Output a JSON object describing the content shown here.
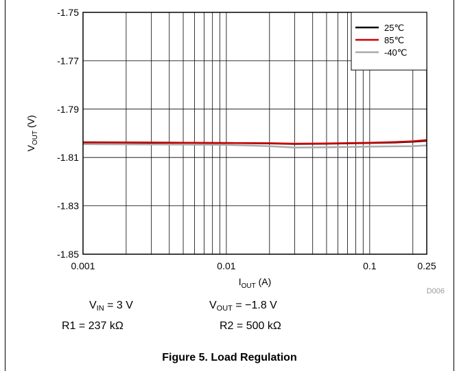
{
  "chart_data": {
    "type": "line",
    "xscale": "log",
    "xlim": [
      0.001,
      0.25
    ],
    "ylim": [
      -1.85,
      -1.75
    ],
    "x_tick_values": [
      0.001,
      0.01,
      0.1,
      0.25
    ],
    "x_tick_labels": [
      "0.001",
      "0.01",
      "0.1",
      "0.25"
    ],
    "y_tick_values": [
      -1.75,
      -1.77,
      -1.79,
      -1.81,
      -1.83,
      -1.85
    ],
    "y_tick_labels": [
      "-1.75",
      "-1.77",
      "-1.79",
      "-1.81",
      "-1.83",
      "-1.85"
    ],
    "xlabel": {
      "main": "I",
      "sub": "OUT",
      "unit": " (A)"
    },
    "ylabel": {
      "main": "V",
      "sub": "OUT",
      "unit": " (V)"
    },
    "grid": true,
    "legend_position": "top-right",
    "series": [
      {
        "name": "25℃",
        "color": "#000000",
        "x": [
          0.001,
          0.003,
          0.01,
          0.02,
          0.03,
          0.05,
          0.1,
          0.15,
          0.2,
          0.25
        ],
        "y": [
          -1.8038,
          -1.8039,
          -1.804,
          -1.8042,
          -1.8044,
          -1.8043,
          -1.804,
          -1.8038,
          -1.8035,
          -1.8031
        ]
      },
      {
        "name": "85℃",
        "color": "#cc0000",
        "x": [
          0.001,
          0.003,
          0.01,
          0.02,
          0.03,
          0.05,
          0.1,
          0.15,
          0.2,
          0.25
        ],
        "y": [
          -1.8037,
          -1.8038,
          -1.804,
          -1.8041,
          -1.8043,
          -1.8042,
          -1.8039,
          -1.8036,
          -1.8033,
          -1.8028
        ]
      },
      {
        "name": "-40℃",
        "color": "#aaaaaa",
        "x": [
          0.001,
          0.003,
          0.01,
          0.02,
          0.03,
          0.05,
          0.1,
          0.15,
          0.2,
          0.25
        ],
        "y": [
          -1.8045,
          -1.8046,
          -1.8048,
          -1.8053,
          -1.8059,
          -1.8058,
          -1.8055,
          -1.8054,
          -1.8053,
          -1.805
        ]
      }
    ],
    "code": "D006"
  },
  "conditions": {
    "vin": {
      "main": "V",
      "sub": "IN",
      "value": " = 3 V"
    },
    "vout": {
      "main": "V",
      "sub": "OUT",
      "value": " = −1.8 V"
    },
    "r1": "R1 = 237 kΩ",
    "r2": "R2 = 500 kΩ"
  },
  "caption": "Figure 5. Load Regulation"
}
